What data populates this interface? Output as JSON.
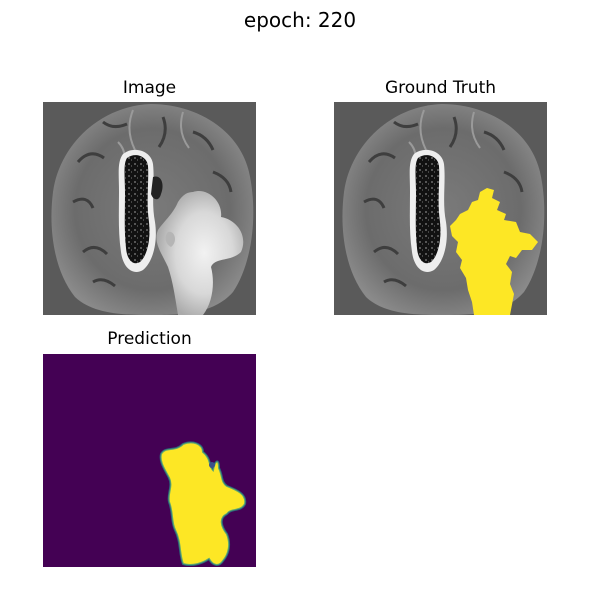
{
  "figure": {
    "suptitle": "epoch: 220",
    "panels": [
      {
        "id": "image",
        "title": "Image"
      },
      {
        "id": "ground_truth",
        "title": "Ground Truth"
      },
      {
        "id": "prediction",
        "title": "Prediction"
      }
    ]
  },
  "colors": {
    "mri_background": "#5a5a5a",
    "mask_yellow": "#fde725",
    "prediction_background": "#440154",
    "prediction_edge": "#21918c"
  }
}
